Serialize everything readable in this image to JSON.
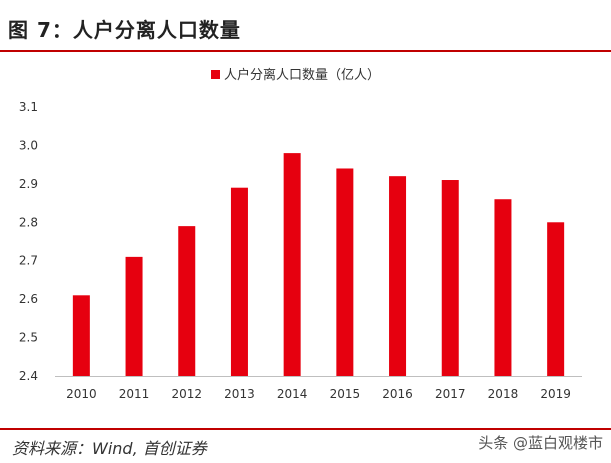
{
  "figure": {
    "title": "图 7：人户分离人口数量",
    "source": "资料来源：Wind, 首创证券",
    "watermark": "头条 @蓝白观楼市"
  },
  "colors": {
    "bar": "#e6000f",
    "rule": "#c00000",
    "axis": "#bfbfbf"
  },
  "chart_data": {
    "type": "bar",
    "title": "",
    "xlabel": "",
    "ylabel": "",
    "legend_position": "top-center",
    "grid": false,
    "categories": [
      "2010",
      "2011",
      "2012",
      "2013",
      "2014",
      "2015",
      "2016",
      "2017",
      "2018",
      "2019"
    ],
    "series": [
      {
        "name": "人户分离人口数量（亿人）",
        "values": [
          2.61,
          2.71,
          2.79,
          2.89,
          2.98,
          2.94,
          2.92,
          2.91,
          2.86,
          2.8
        ]
      }
    ],
    "ylim": [
      2.4,
      3.1
    ],
    "yticks": [
      "2.4",
      "2.5",
      "2.6",
      "2.7",
      "2.8",
      "2.9",
      "3.0",
      "3.1"
    ]
  }
}
